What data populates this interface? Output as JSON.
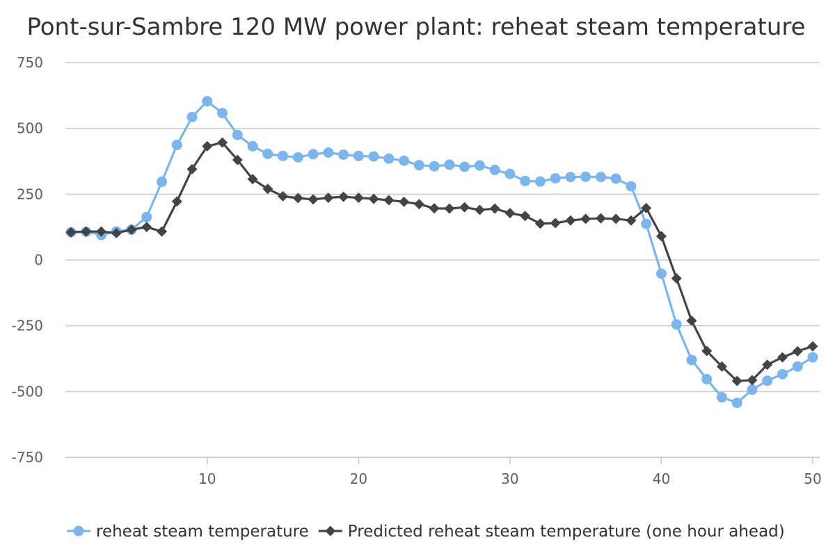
{
  "chart_data": {
    "type": "line",
    "title": "Pont-sur-Sambre 120 MW power plant: reheat steam temperature",
    "xlabel": "",
    "ylabel": "",
    "xlim": [
      1,
      50
    ],
    "ylim": [
      -750,
      750
    ],
    "x_ticks": [
      10,
      20,
      30,
      40,
      50
    ],
    "y_ticks": [
      -750,
      -500,
      -250,
      0,
      250,
      500,
      750
    ],
    "grid": "horizontal",
    "legend_position": "bottom",
    "x": [
      1,
      2,
      3,
      4,
      5,
      6,
      7,
      8,
      9,
      10,
      11,
      12,
      13,
      14,
      15,
      16,
      17,
      18,
      19,
      20,
      21,
      22,
      23,
      24,
      25,
      26,
      27,
      28,
      29,
      30,
      31,
      32,
      33,
      34,
      35,
      36,
      37,
      38,
      39,
      40,
      41,
      42,
      43,
      44,
      45,
      46,
      47,
      48,
      49,
      50
    ],
    "series": [
      {
        "name": "reheat steam temperature",
        "color": "#7cb5ec",
        "marker": "circle",
        "values": [
          105,
          107,
          95,
          108,
          115,
          163,
          297,
          437,
          543,
          603,
          558,
          475,
          432,
          403,
          395,
          390,
          402,
          408,
          400,
          395,
          393,
          385,
          377,
          360,
          356,
          362,
          354,
          359,
          342,
          327,
          300,
          298,
          310,
          315,
          316,
          315,
          309,
          280,
          137,
          -52,
          -245,
          -380,
          -453,
          -522,
          -543,
          -493,
          -459,
          -434,
          -405,
          -370
        ]
      },
      {
        "name": "Predicted reheat steam temperature (one hour ahead)",
        "color": "#434348",
        "marker": "diamond",
        "values": [
          105,
          108,
          108,
          102,
          115,
          125,
          108,
          222,
          345,
          432,
          446,
          380,
          307,
          270,
          242,
          235,
          230,
          236,
          240,
          236,
          232,
          227,
          221,
          212,
          196,
          195,
          200,
          190,
          195,
          178,
          167,
          138,
          140,
          150,
          156,
          158,
          156,
          150,
          197,
          90,
          -70,
          -231,
          -346,
          -405,
          -460,
          -457,
          -398,
          -370,
          -347,
          -328
        ]
      }
    ]
  }
}
